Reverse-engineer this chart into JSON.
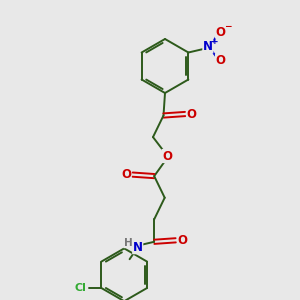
{
  "bg": "#e8e8e8",
  "bc": "#2d5a1b",
  "Oc": "#cc0000",
  "Nc": "#0000cc",
  "Clc": "#33aa33",
  "Hc": "#777777",
  "figsize": [
    3.0,
    3.0
  ],
  "dpi": 100,
  "xlim": [
    0,
    10
  ],
  "ylim": [
    0,
    10
  ],
  "lw": 1.4,
  "fs": 7.5
}
